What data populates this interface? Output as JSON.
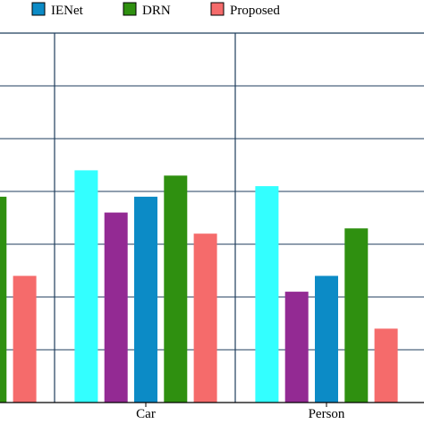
{
  "chart_data": {
    "type": "bar",
    "title": "",
    "xlabel": "",
    "ylabel": "",
    "ylim": [
      0,
      7
    ],
    "categories": [
      "",
      "Car",
      "Person"
    ],
    "series": [
      {
        "name": "",
        "color": "#33ffff",
        "values": [
          null,
          4.4,
          4.1
        ]
      },
      {
        "name": "",
        "color": "#932a93",
        "values": [
          null,
          3.6,
          2.1
        ]
      },
      {
        "name": "IENet",
        "color": "#0c8bc6",
        "values": [
          null,
          3.9,
          2.4
        ]
      },
      {
        "name": "DRN",
        "color": "#2f9010",
        "values": [
          3.9,
          4.3,
          3.3
        ]
      },
      {
        "name": "Proposed",
        "color": "#f56b6b",
        "values": [
          2.4,
          3.2,
          1.4
        ]
      }
    ],
    "grid": true,
    "legend_position": "top"
  }
}
